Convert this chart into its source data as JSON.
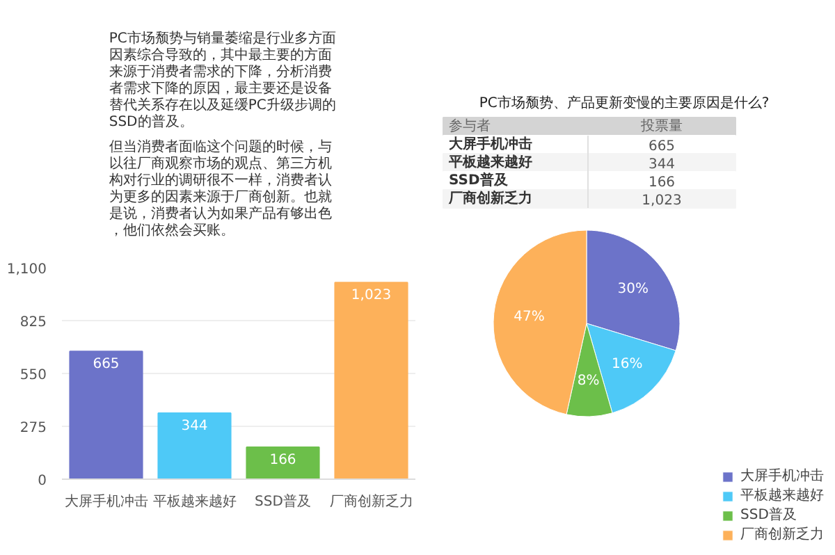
{
  "chart_data": [
    {
      "type": "other",
      "annotations": [
        "PC市场颓势与销量萎缩是行业多方面因素综合导致的，其中最主要的方面来源于消费者需求的下降，分析消费者需求下降的原因，最主要还是设备替代关系存在以及延缓PC升级步调的SSD的普及。",
        "但当消费者面临这个问题的时候，与以往厂商观察市场的观点、第三方机构对行业的调研很不一样，消费者认为更多的因素来源于厂商创新。也就是说，消费者认为如果产品有够出色，他们依然会买账。"
      ]
    },
    {
      "type": "bar",
      "categories": [
        "大屏手机冲击",
        "平板越来越好",
        "SSD普及",
        "厂商创新乏力"
      ],
      "values": [
        665,
        344,
        166,
        1023
      ],
      "colors": [
        "#6c73c9",
        "#4ec9f7",
        "#6cbf4a",
        "#fdb15a"
      ],
      "value_labels": [
        "665",
        "344",
        "166",
        "1,023"
      ],
      "ylim": [
        0,
        1100
      ],
      "yticks": [
        0,
        275,
        550,
        825,
        {
          "value": 1100,
          "label": "1,100"
        }
      ],
      "grid": "y"
    },
    {
      "type": "other",
      "title": "PC市场颓势、产品更新变慢的主要原因是什么?",
      "xlabel": "参与者",
      "ylabel": "投票量",
      "categories": [
        "大屏手机冲击",
        "平板越来越好",
        "SSD普及",
        "厂商创新乏力"
      ],
      "values": [
        665,
        344,
        166,
        1023
      ],
      "value_labels": [
        "665",
        "344",
        "166",
        "1,023"
      ]
    },
    {
      "type": "pie",
      "categories": [
        "大屏手机冲击",
        "平板越来越好",
        "SSD普及",
        "厂商创新乏力"
      ],
      "values": [
        30,
        16,
        8,
        47
      ],
      "colors": [
        "#6c73c9",
        "#4ec9f7",
        "#6cbf4a",
        "#fdb15a"
      ],
      "value_labels": [
        "30%",
        "16%",
        "8%",
        "47%"
      ],
      "legend": "bottom right"
    }
  ]
}
